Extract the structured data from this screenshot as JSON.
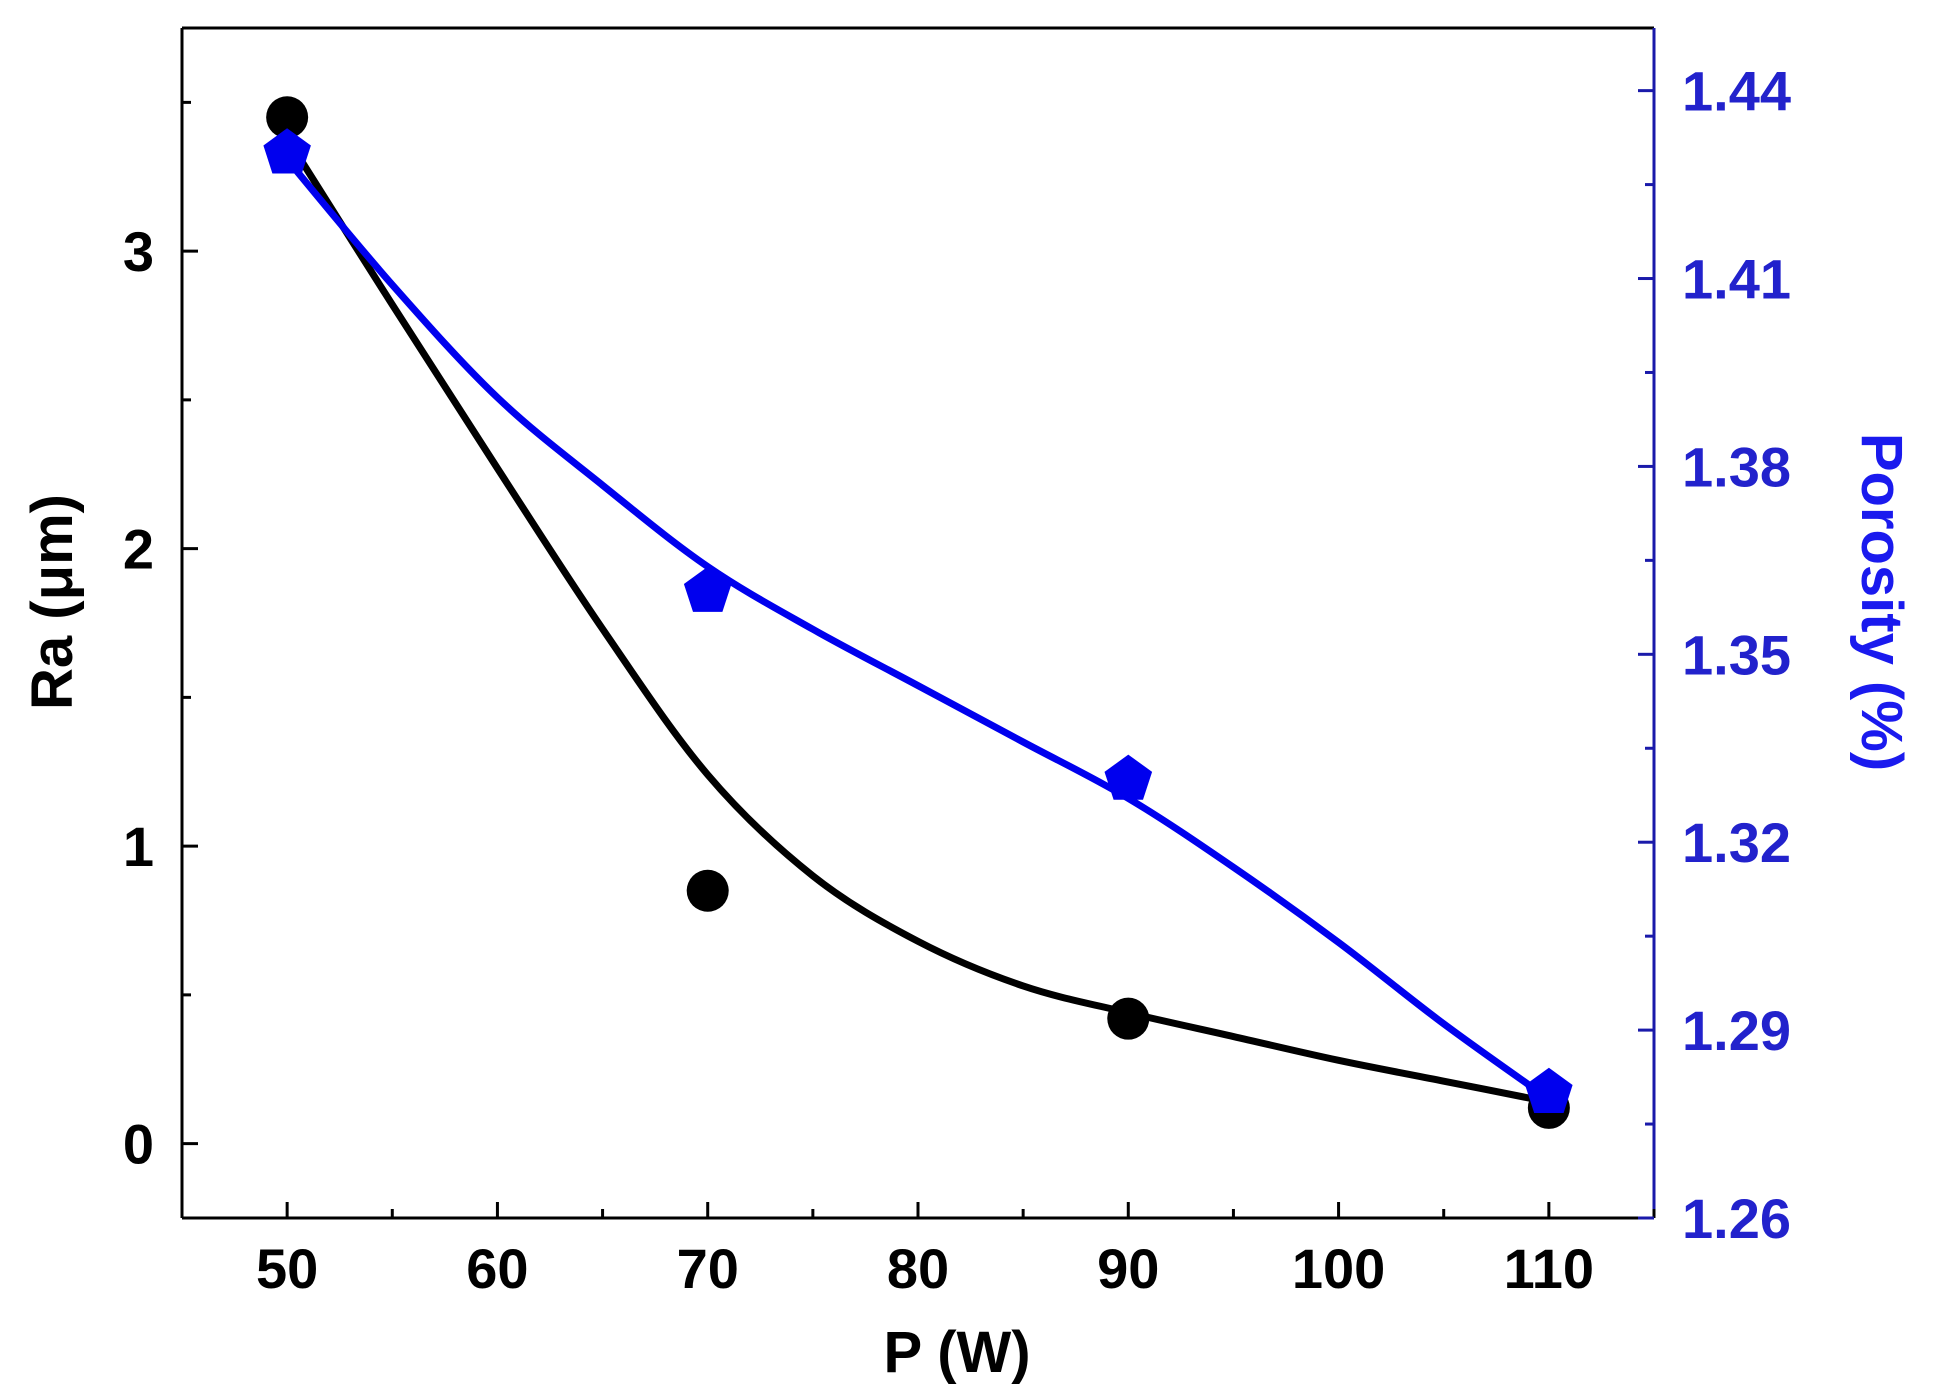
{
  "chart_data": {
    "type": "scatter",
    "title": "",
    "xlabel": "P (W)",
    "ylabel_left": "Ra (μm)",
    "ylabel_right": "Porosity (%)",
    "xlim": [
      45,
      115
    ],
    "ylim_left": [
      -0.25,
      3.75
    ],
    "ylim_right": [
      1.26,
      1.45
    ],
    "x_ticks": [
      50,
      60,
      70,
      80,
      90,
      100,
      110
    ],
    "y_left_ticks": [
      0,
      1,
      2,
      3
    ],
    "y_right_ticks": [
      "1.26",
      "1.29",
      "1.32",
      "1.35",
      "1.38",
      "1.41",
      "1.44"
    ],
    "grid": false,
    "series": [
      {
        "name": "Ra",
        "axis": "left",
        "marker": "circle",
        "color": "#000000",
        "x": [
          50,
          70,
          90,
          110
        ],
        "y": [
          3.45,
          0.85,
          0.42,
          0.12
        ],
        "fit_curve": {
          "x": [
            50,
            55,
            60,
            65,
            70,
            75,
            80,
            85,
            90,
            95,
            100,
            105,
            110
          ],
          "y": [
            3.38,
            2.82,
            2.27,
            1.73,
            1.24,
            0.9,
            0.68,
            0.53,
            0.44,
            0.36,
            0.28,
            0.21,
            0.14
          ]
        }
      },
      {
        "name": "Porosity",
        "axis": "right",
        "marker": "pentagon",
        "color": "#0000ee",
        "x": [
          50,
          70,
          90,
          110
        ],
        "y": [
          1.43,
          1.36,
          1.33,
          1.28
        ],
        "fit_curve": {
          "x": [
            50,
            55,
            60,
            65,
            70,
            75,
            80,
            85,
            90,
            95,
            100,
            105,
            110
          ],
          "y": [
            1.429,
            1.409,
            1.391,
            1.377,
            1.364,
            1.354,
            1.345,
            1.336,
            1.327,
            1.316,
            1.304,
            1.291,
            1.279
          ]
        }
      }
    ],
    "colors": {
      "left_axis": "#000000",
      "right_axis": "#1a1aaa",
      "right_labels": "#2222cc"
    }
  }
}
